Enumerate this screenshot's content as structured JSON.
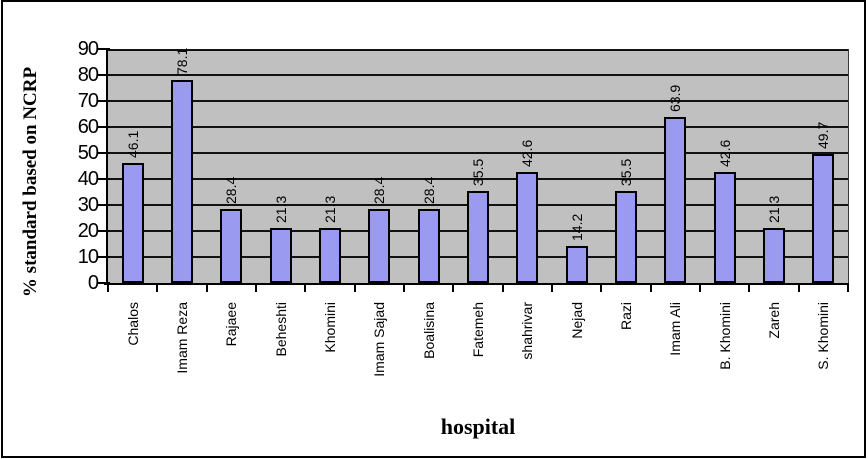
{
  "chart_data": {
    "type": "bar",
    "title": "",
    "xlabel": "hospital",
    "ylabel": "% standard based on NCRP",
    "categories": [
      "Chalos",
      "Imam Reza",
      "Rajaee",
      "Beheshti",
      "Khomini",
      "Imam Sajad",
      "Boalisina",
      "Fatemeh",
      "shahrivar",
      "Nejad",
      "Razi",
      "Imam Ali",
      "B. Khomini",
      "Zareh",
      "S. Khomini"
    ],
    "values": [
      46.1,
      78.1,
      28.4,
      21.3,
      21.3,
      28.4,
      28.4,
      35.5,
      42.6,
      14.2,
      35.5,
      63.9,
      42.6,
      21.3,
      49.7
    ],
    "value_labels": [
      "46.1",
      "78.1",
      "28.4",
      "21.3",
      "21.3",
      "28.4",
      "28.4",
      "35.5",
      "42.6",
      "14.2",
      "35.5",
      "63.9",
      "42.6",
      "21.3",
      "49.7"
    ],
    "yticks": [
      0,
      10,
      20,
      30,
      40,
      50,
      60,
      70,
      80,
      90
    ],
    "ylim": [
      0,
      90
    ],
    "grid": true,
    "legend": "none",
    "colors": {
      "bar_fill": "#9a9af0",
      "bar_border": "#000000",
      "plot_background": "#c0c0c0",
      "gridline": "#111111",
      "axis": "#000000",
      "text": "#000000",
      "figure_border": "#000000",
      "figure_background": "#ffffff"
    }
  }
}
